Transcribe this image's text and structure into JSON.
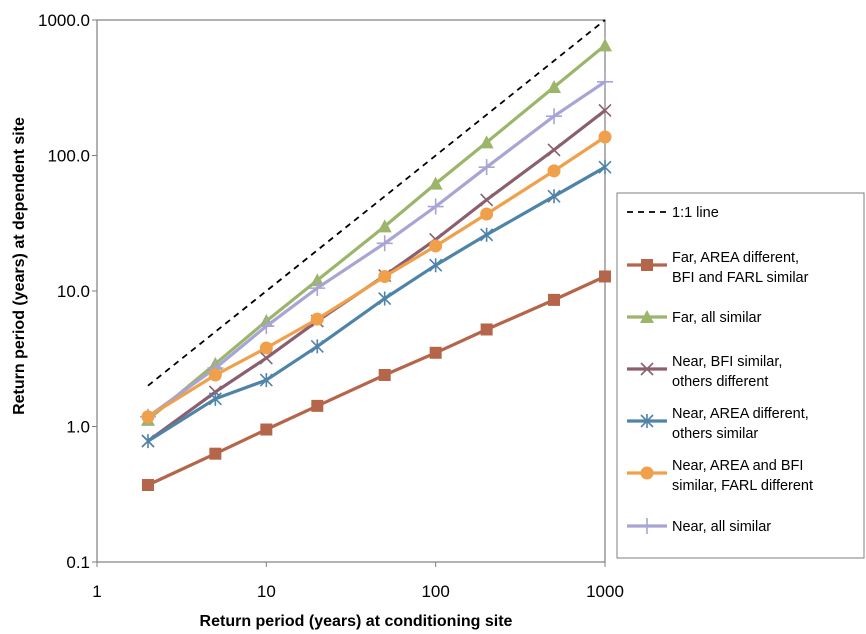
{
  "chart_data": {
    "type": "line",
    "xscale": "log",
    "yscale": "log",
    "xlim": [
      1,
      1000
    ],
    "ylim": [
      0.1,
      1000
    ],
    "x_ticks": [
      "1",
      "10",
      "100",
      "1000"
    ],
    "y_ticks": [
      "0.1",
      "1.0",
      "10.0",
      "100.0",
      "1000.0"
    ],
    "xlabel": "Return period (years) at conditioning site",
    "ylabel": "Return period (years) at dependent site",
    "grid": false,
    "legend_position": "right",
    "x": [
      2,
      5,
      10,
      20,
      50,
      100,
      200,
      500,
      1000
    ],
    "reference_line": {
      "name": "1:1 line",
      "x": [
        2,
        1000
      ],
      "y": [
        2,
        1000
      ],
      "color": "#000000",
      "dash": true
    },
    "series": [
      {
        "name": [
          "Far, AREA different,",
          "BFI and FARL similar"
        ],
        "color": "#b5654a",
        "marker": "square",
        "values": [
          0.37,
          0.63,
          0.95,
          1.42,
          2.4,
          3.5,
          5.2,
          8.6,
          12.8
        ]
      },
      {
        "name": [
          "Far, all similar"
        ],
        "color": "#9bb56b",
        "marker": "triangle",
        "values": [
          1.12,
          2.9,
          6.0,
          12.0,
          30.0,
          62.0,
          125.0,
          320.0,
          650.0
        ]
      },
      {
        "name": [
          "Near, BFI similar,",
          "others different"
        ],
        "color": "#8a6070",
        "marker": "x",
        "values": [
          0.78,
          1.8,
          3.2,
          6.0,
          13.0,
          24.0,
          47.0,
          110.0,
          215.0
        ]
      },
      {
        "name": [
          "Near, AREA different,",
          "others similar"
        ],
        "color": "#4f84a8",
        "marker": "star",
        "values": [
          0.78,
          1.6,
          2.2,
          3.9,
          8.8,
          15.5,
          26.0,
          50.0,
          82.0
        ]
      },
      {
        "name": [
          "Near, AREA and BFI",
          "similar, FARL different"
        ],
        "color": "#f0a04b",
        "marker": "circle",
        "values": [
          1.18,
          2.4,
          3.8,
          6.2,
          12.8,
          21.5,
          37.0,
          77.0,
          137.0
        ]
      },
      {
        "name": [
          "Near, all similar"
        ],
        "color": "#a8a4d4",
        "marker": "plus",
        "values": [
          1.18,
          2.7,
          5.5,
          10.5,
          22.5,
          42.0,
          82.0,
          195.0,
          350.0
        ]
      }
    ]
  }
}
